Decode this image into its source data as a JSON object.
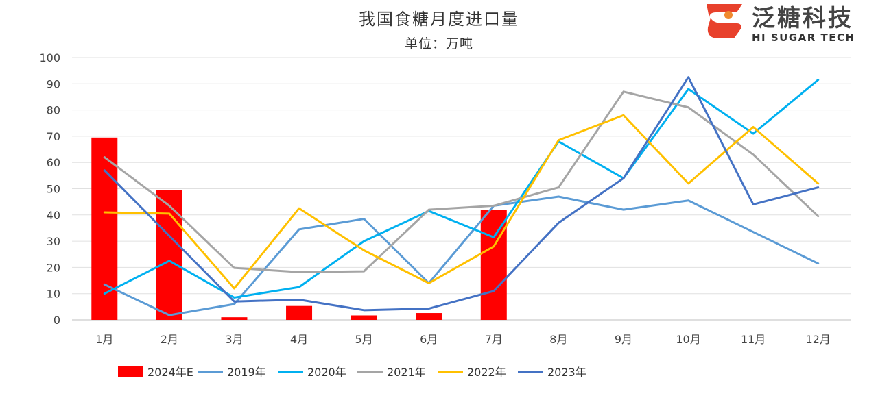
{
  "logo": {
    "name_cn": "泛糖科技",
    "name_en": "HI SUGAR TECH",
    "colors": {
      "primary": "#e8412c",
      "secondary": "#f08a2e"
    }
  },
  "chart_data": {
    "type": "bar+line",
    "title": "我国食糖月度进口量",
    "subtitle": "单位：万吨",
    "categories": [
      "1月",
      "2月",
      "3月",
      "4月",
      "5月",
      "6月",
      "7月",
      "8月",
      "9月",
      "10月",
      "11月",
      "12月"
    ],
    "ylim": [
      0,
      100
    ],
    "yticks": [
      "0",
      "10",
      "20",
      "30",
      "40",
      "50",
      "60",
      "70",
      "80",
      "90",
      "100"
    ],
    "grid": true,
    "legend_position": "bottom",
    "bars": {
      "name": "2024年E",
      "color": "#ff0000",
      "values": [
        69.5,
        49.5,
        1.0,
        5.3,
        1.7,
        2.6,
        42.0,
        null,
        null,
        null,
        null,
        null
      ]
    },
    "series": [
      {
        "name": "2019年",
        "color": "#5b9bd5",
        "values": [
          13.5,
          1.8,
          6.0,
          34.5,
          38.5,
          14.0,
          43.5,
          47.0,
          42.0,
          45.5,
          33.5,
          21.5
        ]
      },
      {
        "name": "2020年",
        "color": "#00b0f0",
        "values": [
          10.0,
          22.5,
          8.5,
          12.5,
          30.0,
          41.5,
          31.5,
          68.0,
          54.0,
          88.0,
          71.0,
          91.5
        ]
      },
      {
        "name": "2021年",
        "color": "#a5a5a5",
        "values": [
          62.0,
          43.5,
          19.8,
          18.2,
          18.5,
          42.0,
          43.5,
          50.5,
          87.0,
          81.0,
          63.0,
          39.5
        ]
      },
      {
        "name": "2022年",
        "color": "#ffc000",
        "values": [
          41.0,
          40.5,
          12.0,
          42.5,
          26.5,
          14.0,
          28.0,
          68.5,
          78.0,
          52.0,
          73.5,
          52.0
        ]
      },
      {
        "name": "2023年",
        "color": "#4472c4",
        "values": [
          57.0,
          32.0,
          7.0,
          7.7,
          3.7,
          4.3,
          11.0,
          37.0,
          54.0,
          92.5,
          44.0,
          50.5
        ]
      }
    ]
  }
}
